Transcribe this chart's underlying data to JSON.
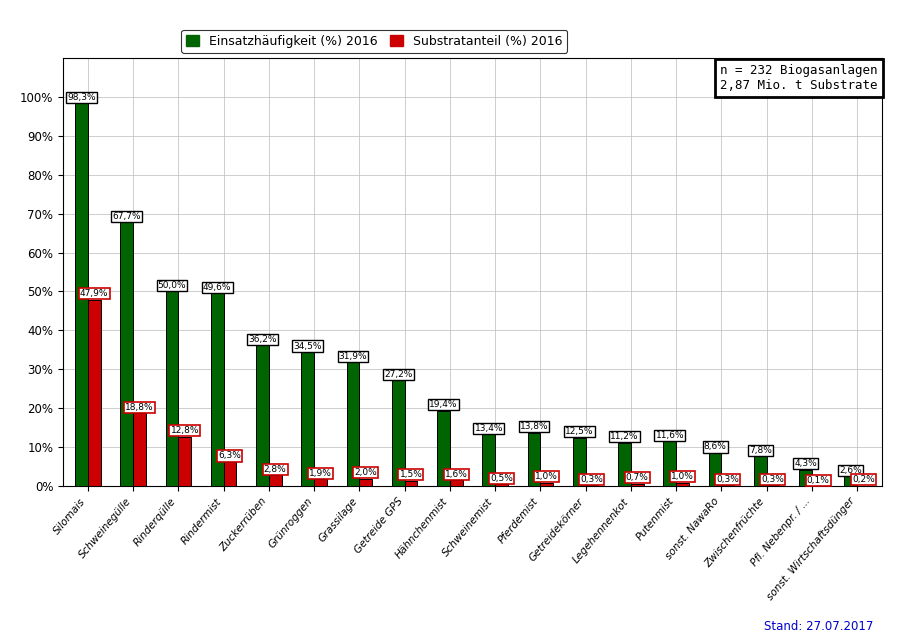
{
  "categories_display": [
    "Silomais",
    "Schweinegülle",
    "Rinderqülle",
    "Rindermist",
    "Zuckerrüben",
    "Grünroggen",
    "Grassilage",
    "Getreide GPS",
    "Hähnchenmist",
    "Schweinemist",
    "Pferdemist",
    "Getreidekörner",
    "Legehennenkot",
    "Putenmist",
    "sonst. NawaRo",
    "Zwischenfrüchte",
    "Pfl. Nebenpr. / ...",
    "sonst. Wirtschaftsdünger"
  ],
  "einsatz": [
    98.3,
    67.7,
    50.0,
    49.6,
    36.2,
    34.5,
    31.9,
    27.2,
    19.4,
    13.4,
    13.8,
    12.5,
    11.2,
    11.6,
    8.6,
    7.8,
    4.3,
    2.6
  ],
  "substrat": [
    47.9,
    18.8,
    12.8,
    6.3,
    2.8,
    1.9,
    2.0,
    1.5,
    1.6,
    0.5,
    1.0,
    0.3,
    0.7,
    1.0,
    0.3,
    0.3,
    0.1,
    0.2
  ],
  "einsatz_color": "#006400",
  "substrat_color": "#cc0000",
  "legend_einsatz": "Einsatzhäufigkeit (%) 2016",
  "legend_substrat": "Substratanteil (%) 2016",
  "annotation_box": "n = 232 Biogasanlagen\n2,87 Mio. t Substrate",
  "stand": "Stand: 27.07.2017",
  "ylim": [
    0,
    110
  ],
  "yticks": [
    0,
    10,
    20,
    30,
    40,
    50,
    60,
    70,
    80,
    90,
    100
  ],
  "yticklabels": [
    "0%",
    "10%",
    "20%",
    "30%",
    "40%",
    "50%",
    "60%",
    "70%",
    "80%",
    "90%",
    "100%"
  ],
  "background_color": "#ffffff",
  "grid_color": "#bbbbbb",
  "label_fontsize": 6.5,
  "tick_fontsize": 8.5,
  "bar_width": 0.28,
  "bar_gap": 0.0
}
